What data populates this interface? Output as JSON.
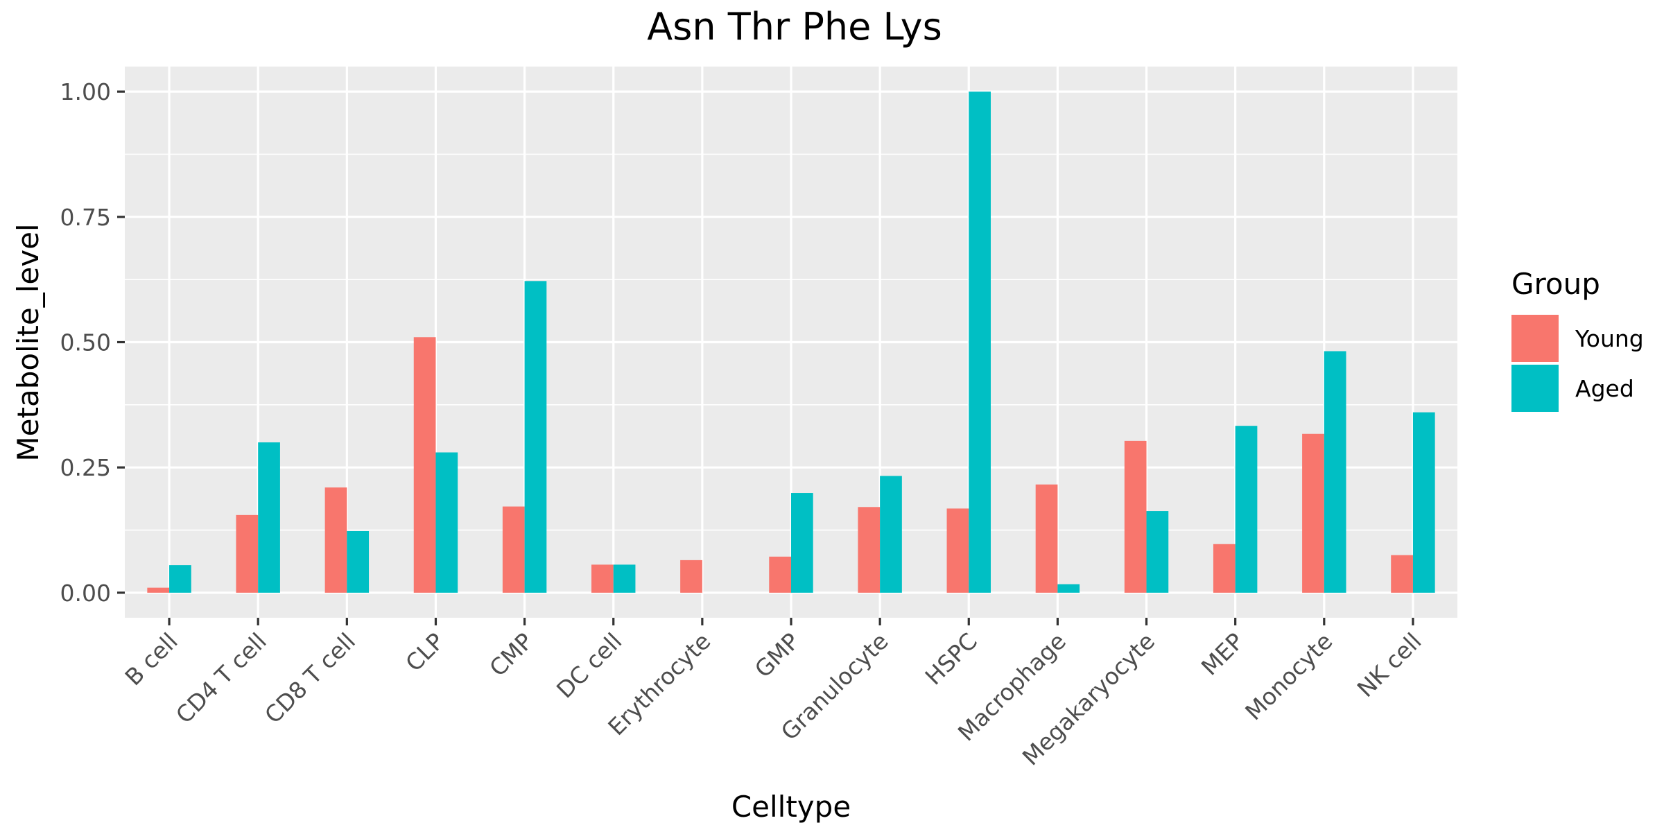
{
  "chart_data": {
    "type": "bar",
    "title": "Asn Thr Phe Lys",
    "xlabel": "Celltype",
    "ylabel": "Metabolite_level",
    "ylim": [
      -0.05,
      1.05
    ],
    "yticks": [
      0,
      0.25,
      0.5,
      0.75,
      1.0
    ],
    "ytick_labels": [
      "0.00",
      "0.25",
      "0.50",
      "0.75",
      "1.00"
    ],
    "grid": true,
    "legend": {
      "title": "Group",
      "placement": "right"
    },
    "categories": [
      "B cell",
      "CD4 T cell",
      "CD8 T cell",
      "CLP",
      "CMP",
      "DC cell",
      "Erythrocyte",
      "GMP",
      "Granulocyte",
      "HSPC",
      "Macrophage",
      "Megakaryocyte",
      "MEP",
      "Monocyte",
      "NK cell"
    ],
    "series": [
      {
        "name": "Young",
        "color": "#F8766D",
        "values": [
          0.01,
          0.155,
          0.21,
          0.51,
          0.172,
          0.056,
          0.065,
          0.072,
          0.171,
          0.168,
          0.216,
          0.303,
          0.097,
          0.317,
          0.075
        ]
      },
      {
        "name": "Aged",
        "color": "#00BFC4",
        "values": [
          0.055,
          0.3,
          0.123,
          0.28,
          0.622,
          0.056,
          0.0,
          0.199,
          0.233,
          1.0,
          0.017,
          0.163,
          0.333,
          0.482,
          0.36
        ]
      }
    ]
  }
}
